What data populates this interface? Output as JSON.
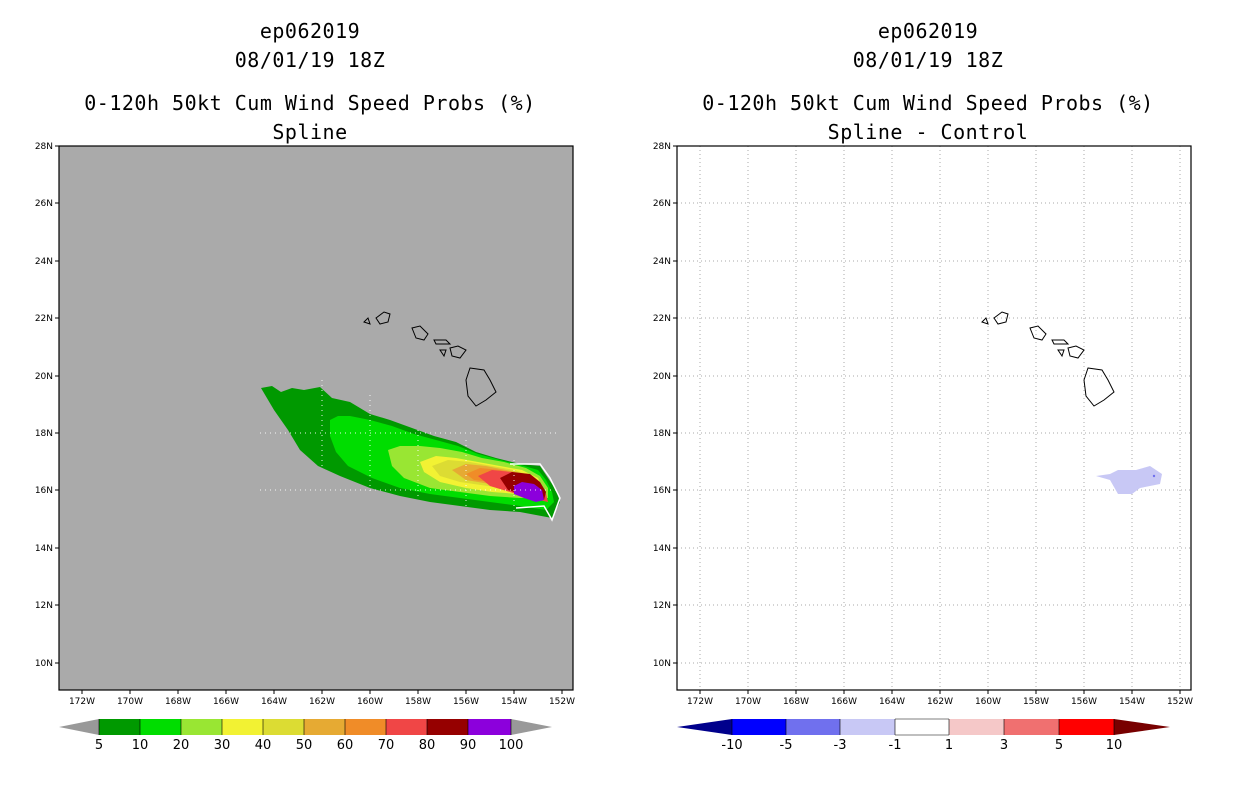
{
  "panels": [
    {
      "case_id": "ep062019",
      "datetime": "08/01/19 18Z",
      "product": "0-120h 50kt Cum Wind Speed Probs (%)",
      "subtitle": "Spline",
      "background": "#aaaaaa",
      "lat_labels": [
        "28N",
        "26N",
        "24N",
        "22N",
        "20N",
        "18N",
        "16N",
        "14N",
        "12N",
        "10N"
      ],
      "lon_labels": [
        "172W",
        "170W",
        "168W",
        "166W",
        "164W",
        "162W",
        "160W",
        "158W",
        "156W",
        "154W",
        "152W"
      ],
      "colorbar": {
        "labels": [
          "5",
          "10",
          "20",
          "30",
          "40",
          "50",
          "60",
          "70",
          "80",
          "90",
          "100"
        ],
        "colors": [
          "#009900",
          "#00dd00",
          "#99e633",
          "#f2f233",
          "#dcdc33",
          "#e6aa33",
          "#f08c28",
          "#f04646",
          "#960000",
          "#8c00dc"
        ],
        "end_color": "#999999"
      }
    },
    {
      "case_id": "ep062019",
      "datetime": "08/01/19 18Z",
      "product": "0-120h 50kt Cum Wind Speed Probs (%)",
      "subtitle": "Spline - Control",
      "background": "#ffffff",
      "lat_labels": [
        "28N",
        "26N",
        "24N",
        "22N",
        "20N",
        "18N",
        "16N",
        "14N",
        "12N",
        "10N"
      ],
      "lon_labels": [
        "172W",
        "170W",
        "168W",
        "166W",
        "164W",
        "162W",
        "160W",
        "158W",
        "156W",
        "154W",
        "152W"
      ],
      "colorbar": {
        "labels": [
          "-10",
          "-5",
          "-3",
          "-1",
          "1",
          "3",
          "5",
          "10"
        ],
        "colors": [
          "#0000ff",
          "#7070ee",
          "#c8c8f5",
          "#ffffff",
          "#f5c8c8",
          "#f07070",
          "#ff0000"
        ],
        "low_end_color": "#00008c",
        "high_end_color": "#780000"
      }
    }
  ]
}
